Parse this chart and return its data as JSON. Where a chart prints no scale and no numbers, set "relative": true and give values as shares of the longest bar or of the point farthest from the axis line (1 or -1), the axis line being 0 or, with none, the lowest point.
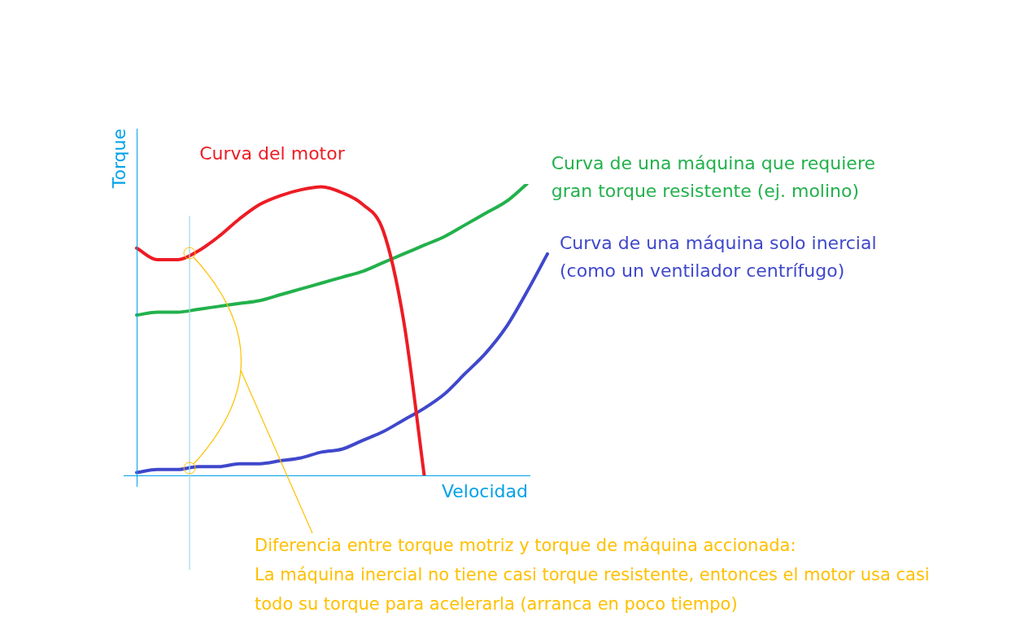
{
  "chart_data": {
    "type": "line",
    "relative": true,
    "marker": "none",
    "xlabel": "Velocidad",
    "ylabel": "Torque",
    "categories": [
      null,
      null,
      null,
      null,
      null,
      null,
      null,
      null,
      null,
      null,
      null,
      null,
      null,
      null,
      null,
      null,
      null,
      null,
      null,
      null,
      null
    ],
    "series": [
      {
        "name": "Curva del motor",
        "color": "#ed1c24",
        "values": [
          0.78,
          0.74,
          0.74,
          0.77,
          0.82,
          0.88,
          0.93,
          0.96,
          0.98,
          0.99,
          0.97,
          0.93,
          0.84,
          0.53,
          0,
          null,
          null,
          null,
          null,
          null,
          null
        ]
      },
      {
        "name": "Curva de una máquina que requiere gran torque resistente (ej. molino)",
        "color": "#22b14c",
        "values": [
          0.55,
          0.56,
          0.56,
          0.57,
          0.58,
          0.59,
          0.6,
          0.62,
          0.64,
          0.66,
          0.68,
          0.7,
          0.73,
          0.76,
          0.79,
          0.82,
          0.86,
          0.9,
          0.94,
          1,
          null
        ]
      },
      {
        "name": "Curva de una máquina solo inercial (como un ventilador centrífugo)",
        "color": "#3f48cc",
        "values": [
          0.01,
          0.02,
          0.02,
          0.03,
          0.03,
          0.04,
          0.04,
          0.05,
          0.06,
          0.08,
          0.09,
          0.12,
          0.15,
          0.19,
          0.23,
          0.28,
          0.35,
          0.42,
          0.51,
          0.63,
          0.76
        ]
      }
    ],
    "annotations": [
      "Diferencia entre torque motriz y torque de máquina accionada:\nLa máquina inercial no tiene casi torque resistente, entonces el motor usa casi todo su torque para acelerarla (arranca en poco tiempo)"
    ]
  }
}
